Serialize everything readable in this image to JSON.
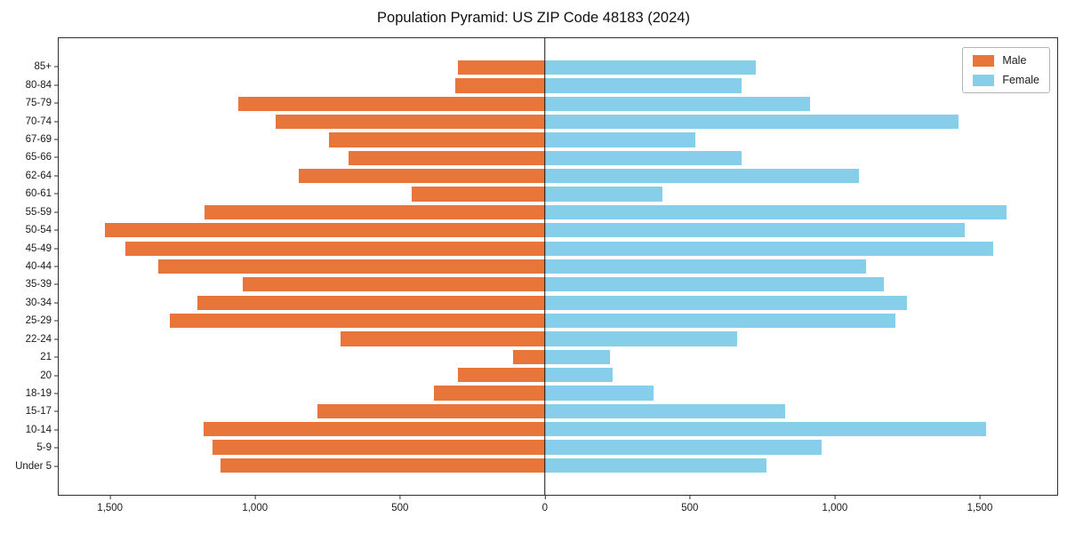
{
  "chart_data": {
    "type": "bar",
    "subtype": "population-pyramid",
    "orientation": "horizontal",
    "title": "Population Pyramid: US ZIP Code 48183 (2024)",
    "categories": [
      "85+",
      "80-84",
      "75-79",
      "70-74",
      "67-69",
      "65-66",
      "62-64",
      "60-61",
      "55-59",
      "50-54",
      "45-49",
      "40-44",
      "35-39",
      "30-34",
      "25-29",
      "22-24",
      "21",
      "20",
      "18-19",
      "15-17",
      "10-14",
      "5-9",
      "Under 5"
    ],
    "series": [
      {
        "name": "Male",
        "side": "left",
        "color": "#e8763b",
        "values": [
          300,
          310,
          1060,
          930,
          745,
          680,
          850,
          460,
          1175,
          1520,
          1450,
          1335,
          1045,
          1200,
          1295,
          705,
          110,
          300,
          385,
          785,
          1180,
          1150,
          1120
        ]
      },
      {
        "name": "Female",
        "side": "right",
        "color": "#87ceeb",
        "values": [
          730,
          680,
          915,
          1430,
          520,
          680,
          1085,
          405,
          1595,
          1450,
          1550,
          1110,
          1170,
          1250,
          1210,
          665,
          225,
          235,
          375,
          830,
          1525,
          955,
          765
        ]
      }
    ],
    "xlim": [
      -1680,
      1770
    ],
    "xticks": [
      -1500,
      -1000,
      -500,
      0,
      500,
      1000,
      1500
    ],
    "xtick_labels": [
      "1,500",
      "1,000",
      "500",
      "0",
      "500",
      "1,000",
      "1,500"
    ],
    "legend_position": "upper right",
    "grid": false
  }
}
